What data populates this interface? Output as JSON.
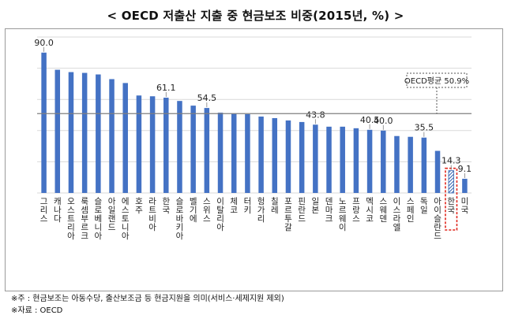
{
  "title": "< OECD 저출산 지출 중 현금보조 비중(2015년, %) >",
  "chart_data": {
    "type": "bar",
    "title": "OECD 저출산 지출 중 현금보조 비중(2015년, %)",
    "ylim": [
      0,
      100
    ],
    "grid": true,
    "categories": [
      "그리스",
      "캐나다",
      "오스트리아",
      "룩셈부르크",
      "슬로베니아",
      "아일랜드",
      "에스토니아",
      "호주",
      "라트비아",
      "한국",
      "슬로바키아",
      "벨기에",
      "스위스",
      "이탈리아",
      "체코",
      "터키",
      "헝가리",
      "칠레",
      "포르투갈",
      "핀란드",
      "일본",
      "덴마크",
      "노르웨이",
      "프랑스",
      "멕시코",
      "스웨덴",
      "이스라엘",
      "스페인",
      "독일",
      "아이슬란드",
      "한국",
      "미국"
    ],
    "values": [
      90.0,
      79.0,
      77.5,
      77.0,
      76.0,
      73.0,
      70.5,
      62.5,
      62.0,
      61.1,
      59.0,
      56.0,
      54.5,
      51.5,
      51.0,
      50.5,
      49.0,
      48.0,
      46.5,
      45.5,
      43.8,
      42.5,
      42.5,
      41.5,
      40.5,
      40.0,
      36.5,
      36.0,
      35.5,
      27.0,
      14.3,
      9.1
    ],
    "data_labels": [
      "90.0",
      "",
      "",
      "",
      "",
      "",
      "",
      "",
      "",
      "61.1",
      "",
      "",
      "54.5",
      "",
      "",
      "",
      "",
      "",
      "",
      "",
      "43.8",
      "",
      "",
      "",
      "40.5",
      "40.0",
      "",
      "",
      "35.5",
      "",
      "14.3",
      "9.1"
    ],
    "highlight_index": 30,
    "bar_color": "#4472c4",
    "highlight_color": "#2e5fae",
    "box_color": "#e0251b",
    "reference_line": {
      "label": "OECD평균 50.9%",
      "value": 50.9,
      "color": "#7f7f7f"
    }
  },
  "notes": {
    "line1": "※주 : 현금보조는 아동수당, 출산보조금 등 현금지원을 의미(서비스·세제지원 제외)",
    "line2": "※자료 : OECD"
  }
}
